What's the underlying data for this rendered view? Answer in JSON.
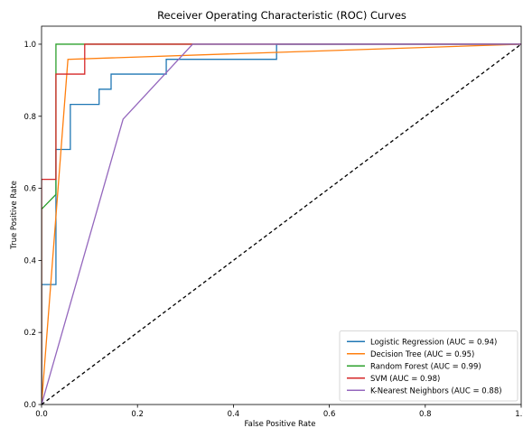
{
  "chart_data": {
    "type": "line",
    "title": "Receiver Operating Characteristic (ROC) Curves",
    "xlabel": "False Positive Rate",
    "ylabel": "True Positive Rate",
    "xlim": [
      0.0,
      1.0
    ],
    "ylim": [
      0.0,
      1.05
    ],
    "xticks": [
      "0.0",
      "0.2",
      "0.4",
      "0.6",
      "0.8",
      "1.0"
    ],
    "yticks": [
      "0.0",
      "0.2",
      "0.4",
      "0.6",
      "0.8",
      "1.0"
    ],
    "grid": false,
    "legend_position": "bottom-right",
    "series": [
      {
        "name": "Logistic Regression (AUC = 0.94)",
        "color": "#1f77b4",
        "style": "solid",
        "x": [
          0.0,
          0.0,
          0.03,
          0.03,
          0.06,
          0.06,
          0.12,
          0.12,
          0.145,
          0.145,
          0.26,
          0.26,
          0.49,
          0.49,
          1.0
        ],
        "y": [
          0.0,
          0.333,
          0.333,
          0.708,
          0.708,
          0.833,
          0.833,
          0.875,
          0.875,
          0.917,
          0.917,
          0.958,
          0.958,
          1.0,
          1.0
        ]
      },
      {
        "name": "Decision Tree (AUC = 0.95)",
        "color": "#ff7f0e",
        "style": "solid",
        "x": [
          0.0,
          0.055,
          1.0
        ],
        "y": [
          0.0,
          0.958,
          1.0
        ]
      },
      {
        "name": "Random Forest (AUC = 0.99)",
        "color": "#2ca02c",
        "style": "solid",
        "x": [
          0.0,
          0.0,
          0.03,
          0.03,
          1.0
        ],
        "y": [
          0.0,
          0.542,
          0.583,
          1.0,
          1.0
        ]
      },
      {
        "name": "SVM (AUC = 0.98)",
        "color": "#d62728",
        "style": "solid",
        "x": [
          0.0,
          0.0,
          0.03,
          0.03,
          0.09,
          0.09,
          1.0
        ],
        "y": [
          0.0,
          0.625,
          0.625,
          0.917,
          0.917,
          1.0,
          1.0
        ]
      },
      {
        "name": "K-Nearest Neighbors (AUC = 0.88)",
        "color": "#9467bd",
        "style": "solid",
        "x": [
          0.0,
          0.17,
          0.315,
          1.0
        ],
        "y": [
          0.0,
          0.792,
          1.0,
          1.0
        ]
      },
      {
        "name": "",
        "color": "#000000",
        "style": "dashed",
        "x": [
          0.0,
          1.0
        ],
        "y": [
          0.0,
          1.0
        ]
      }
    ]
  }
}
